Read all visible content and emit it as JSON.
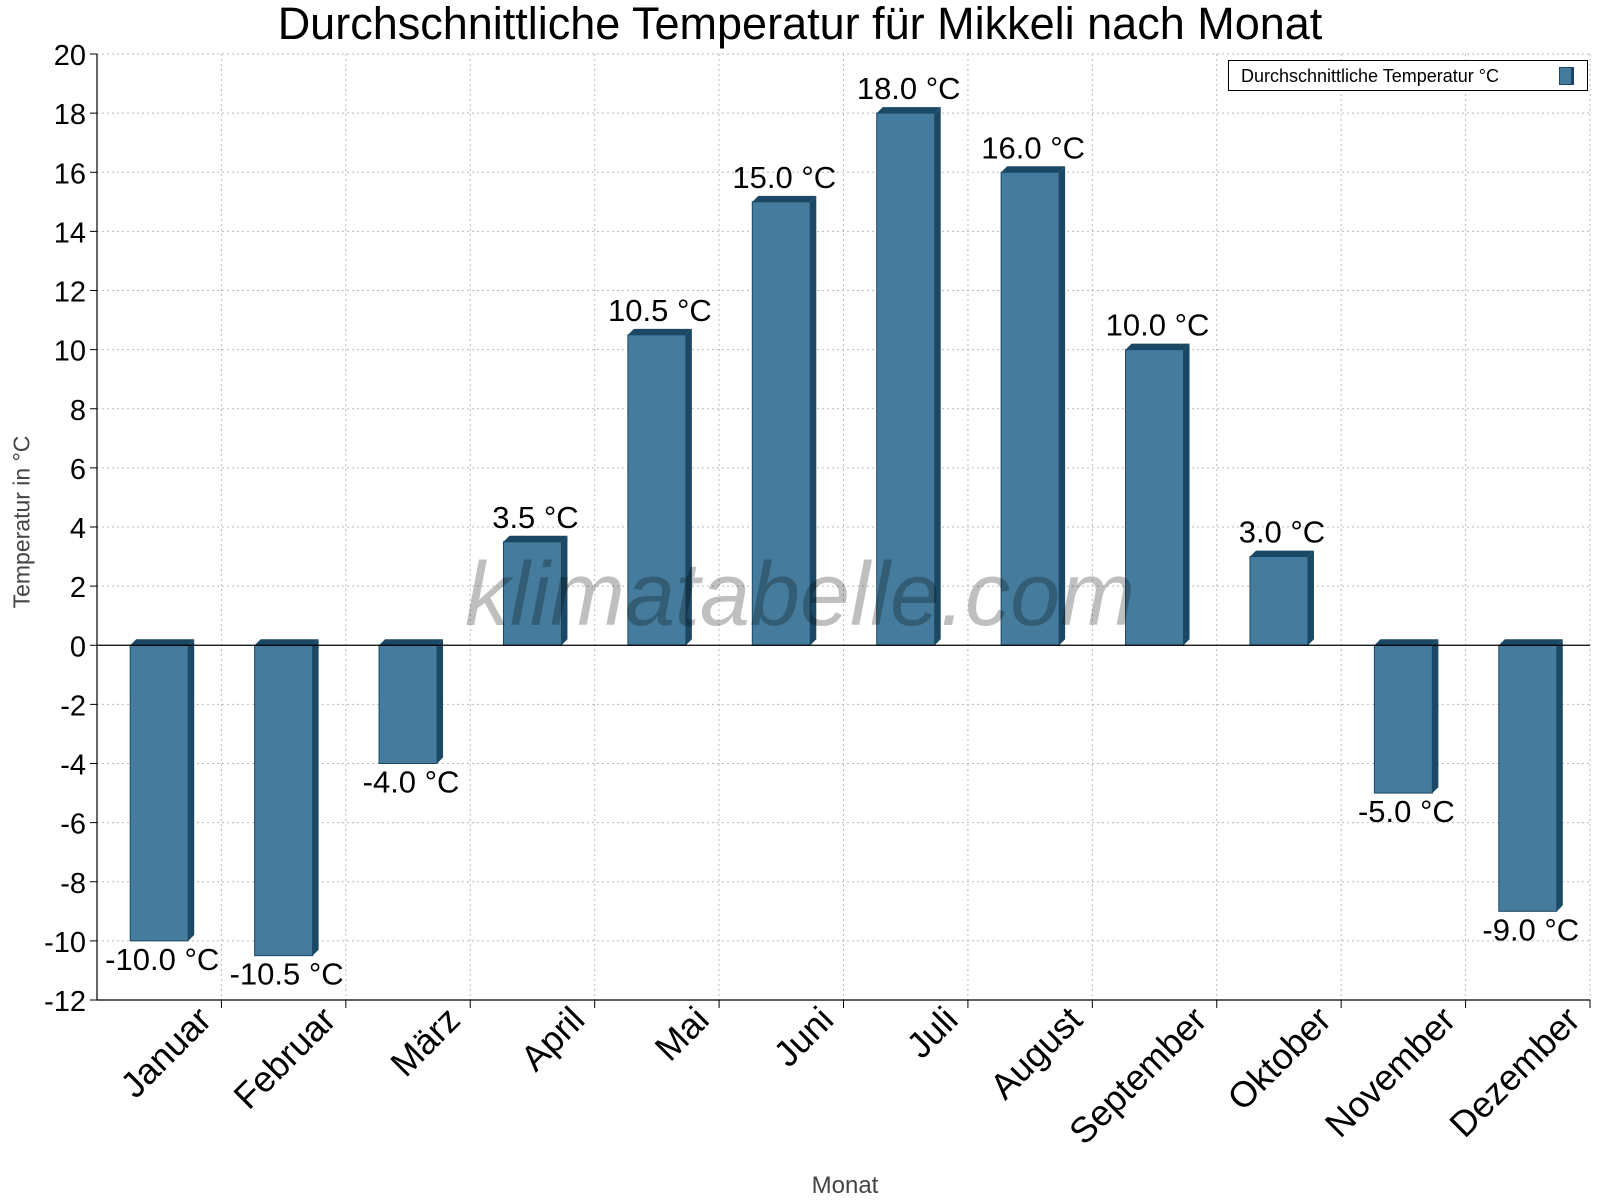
{
  "chart_data": {
    "type": "bar",
    "title": "Durchschnittliche Temperatur für Mikkeli nach Monat",
    "xlabel": "Monat",
    "ylabel": "Temperatur in °C",
    "categories": [
      "Januar",
      "Februar",
      "März",
      "April",
      "Mai",
      "Juni",
      "Juli",
      "August",
      "September",
      "Oktober",
      "November",
      "Dezember"
    ],
    "series": [
      {
        "name": "Durchschnittliche Temperatur °C",
        "values": [
          -10.0,
          -10.5,
          -4.0,
          3.5,
          10.5,
          15.0,
          18.0,
          16.0,
          10.0,
          3.0,
          -5.0,
          -9.0
        ]
      }
    ],
    "data_labels": [
      "-10.0 °C",
      "-10.5 °C",
      "-4.0 °C",
      "3.5 °C",
      "10.5 °C",
      "15.0 °C",
      "18.0 °C",
      "16.0 °C",
      "10.0 °C",
      "3.0 °C",
      "-5.0 °C",
      "-9.0 °C"
    ],
    "ylim": [
      -12,
      20
    ],
    "yticks": [
      -12,
      -10,
      -8,
      -6,
      -4,
      -2,
      0,
      2,
      4,
      6,
      8,
      10,
      12,
      14,
      16,
      18,
      20
    ],
    "ytick_labels": [
      "-12",
      "-10",
      "-8",
      "-6",
      "-4",
      "-2",
      "0",
      "2",
      "4",
      "6",
      "8",
      "10",
      "12",
      "14",
      "16",
      "18",
      "20"
    ],
    "grid": true,
    "legend_position": "top-right",
    "watermark": "klimatabelle.com",
    "colors": {
      "bar_face": "#457b9d",
      "bar_side": "#1b4965",
      "grid": "#bbbbbb",
      "axis": "#000000"
    }
  }
}
